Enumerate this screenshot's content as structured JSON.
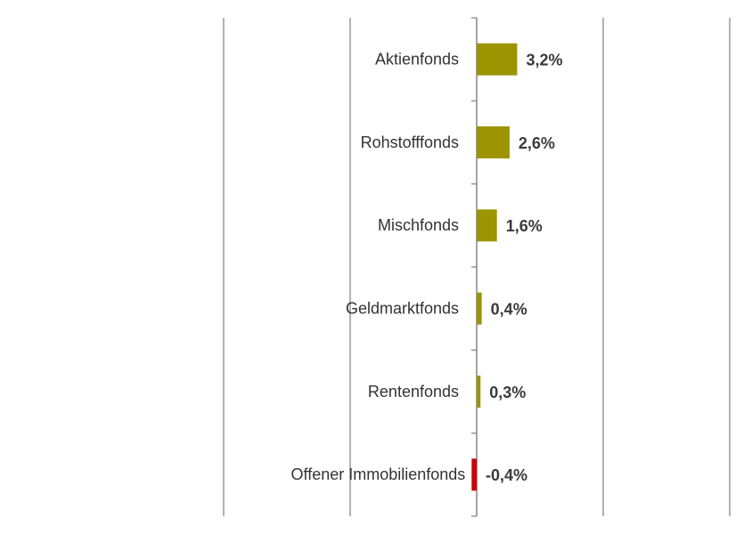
{
  "chart_data": {
    "type": "hbar",
    "categories": [
      "Aktienfonds",
      "Rohstofffonds",
      "Mischfonds",
      "Geldmarktfonds",
      "Rentenfonds",
      "Offener Immobilienfonds"
    ],
    "values": [
      3.2,
      2.6,
      1.6,
      0.4,
      0.3,
      -0.4
    ],
    "value_labels": [
      "3,2%",
      "2,6%",
      "1,6%",
      "0,4%",
      "0,3%",
      "-0,4%"
    ],
    "colors": [
      "#9c9400",
      "#9c9400",
      "#9c9400",
      "#9c9400",
      "#9c9400",
      "#c8000a"
    ],
    "xlim": [
      -20,
      20
    ],
    "xticks": [
      -20,
      -10,
      0,
      10,
      20
    ],
    "grid": true
  }
}
